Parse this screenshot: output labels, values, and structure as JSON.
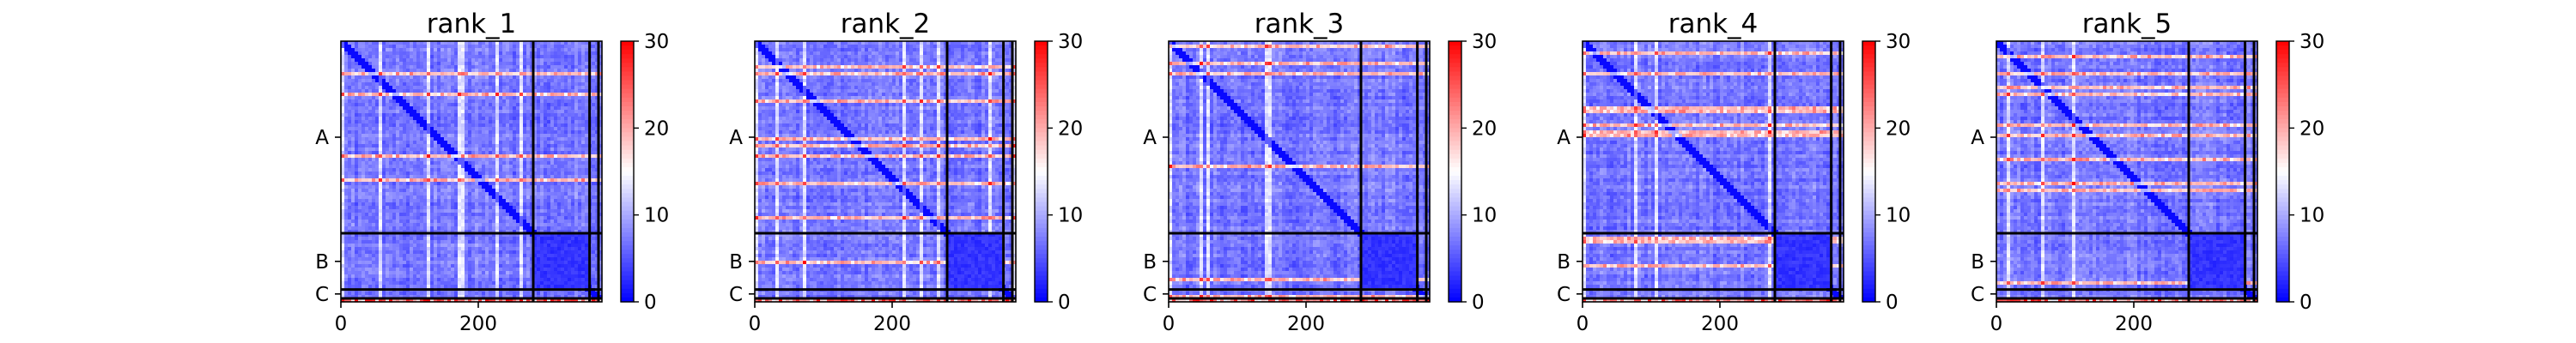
{
  "chart_data": [
    {
      "type": "heatmap",
      "title": "rank_1",
      "x_ticks": [
        "0",
        "200"
      ],
      "y_ticks": [
        "A",
        "B",
        "C"
      ],
      "colorbar_ticks": [
        "0",
        "10",
        "20",
        "30"
      ],
      "colorbar_range": [
        0,
        30
      ],
      "colormap": [
        "#0000ff",
        "#ffffff",
        "#ff0000"
      ],
      "chain_boundaries": [
        280,
        362,
        375
      ],
      "x_range": [
        0,
        380
      ],
      "grid": false
    },
    {
      "type": "heatmap",
      "title": "rank_2",
      "x_ticks": [
        "0",
        "200"
      ],
      "y_ticks": [
        "A",
        "B",
        "C"
      ],
      "colorbar_ticks": [
        "0",
        "10",
        "20",
        "30"
      ],
      "colorbar_range": [
        0,
        30
      ],
      "colormap": [
        "#0000ff",
        "#ffffff",
        "#ff0000"
      ],
      "chain_boundaries": [
        280,
        362,
        375
      ],
      "x_range": [
        0,
        380
      ],
      "grid": false
    },
    {
      "type": "heatmap",
      "title": "rank_3",
      "x_ticks": [
        "0",
        "200"
      ],
      "y_ticks": [
        "A",
        "B",
        "C"
      ],
      "colorbar_ticks": [
        "0",
        "10",
        "20",
        "30"
      ],
      "colorbar_range": [
        0,
        30
      ],
      "colormap": [
        "#0000ff",
        "#ffffff",
        "#ff0000"
      ],
      "chain_boundaries": [
        280,
        362,
        375
      ],
      "x_range": [
        0,
        380
      ],
      "grid": false
    },
    {
      "type": "heatmap",
      "title": "rank_4",
      "x_ticks": [
        "0",
        "200"
      ],
      "y_ticks": [
        "A",
        "B",
        "C"
      ],
      "colorbar_ticks": [
        "0",
        "10",
        "20",
        "30"
      ],
      "colorbar_range": [
        0,
        30
      ],
      "colormap": [
        "#0000ff",
        "#ffffff",
        "#ff0000"
      ],
      "chain_boundaries": [
        280,
        362,
        375
      ],
      "x_range": [
        0,
        380
      ],
      "grid": false
    },
    {
      "type": "heatmap",
      "title": "rank_5",
      "x_ticks": [
        "0",
        "200"
      ],
      "y_ticks": [
        "A",
        "B",
        "C"
      ],
      "colorbar_ticks": [
        "0",
        "10",
        "20",
        "30"
      ],
      "colorbar_range": [
        0,
        30
      ],
      "colormap": [
        "#0000ff",
        "#ffffff",
        "#ff0000"
      ],
      "chain_boundaries": [
        280,
        362,
        375
      ],
      "x_range": [
        0,
        380
      ],
      "grid": false
    }
  ]
}
